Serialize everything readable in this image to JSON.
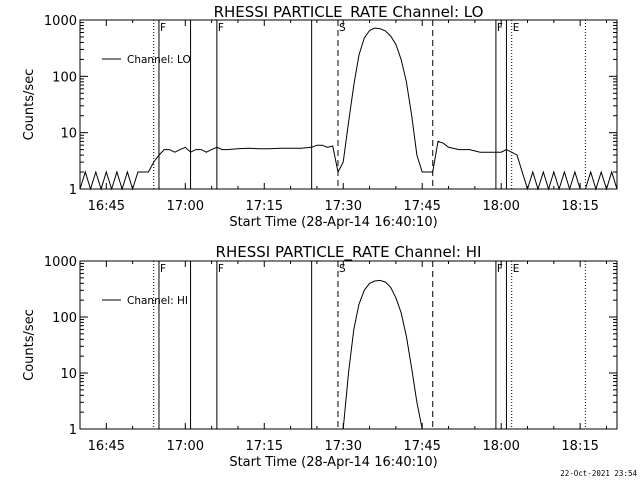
{
  "stamp": "22-Oct-2021 23:54",
  "chart_data": [
    {
      "type": "line",
      "title": "RHESSI PARTICLE_RATE Channel: LO",
      "xlabel": "Start Time (28-Apr-14 16:40:10)",
      "ylabel": "Counts/sec",
      "y_scale": "log",
      "ylim": [
        1,
        1000
      ],
      "xlim": [
        "16:40",
        "18:22"
      ],
      "xticks": [
        "16:45",
        "17:00",
        "17:15",
        "17:30",
        "17:45",
        "18:00",
        "18:15"
      ],
      "yticks": [
        "1",
        "10",
        "100",
        "1000"
      ],
      "legend": {
        "label": "Channel: LO",
        "position": "top-left"
      },
      "markers": [
        {
          "time": "16:54",
          "style": "dotted",
          "label": ""
        },
        {
          "time": "16:55",
          "style": "solid",
          "label": "F"
        },
        {
          "time": "17:01",
          "style": "solid",
          "label": ""
        },
        {
          "time": "17:06",
          "style": "solid",
          "label": "F"
        },
        {
          "time": "17:24",
          "style": "solid",
          "label": ""
        },
        {
          "time": "17:29",
          "style": "dashed",
          "label": "S"
        },
        {
          "time": "17:47",
          "style": "dashed",
          "label": ""
        },
        {
          "time": "17:59",
          "style": "solid",
          "label": "F"
        },
        {
          "time": "18:01",
          "style": "solid",
          "label": ""
        },
        {
          "time": "18:02",
          "style": "dotted",
          "label": "E"
        },
        {
          "time": "18:16",
          "style": "dotted",
          "label": ""
        }
      ],
      "series": [
        {
          "x": [
            "16:40",
            "16:41",
            "16:42",
            "16:43",
            "16:44",
            "16:45",
            "16:46",
            "16:47",
            "16:48",
            "16:49",
            "16:50",
            "16:51",
            "16:52",
            "16:53",
            "16:54",
            "16:55",
            "16:56",
            "16:57",
            "16:58",
            "16:59",
            "17:00",
            "17:01",
            "17:02",
            "17:03",
            "17:04",
            "17:05",
            "17:06",
            "17:07",
            "17:08",
            "17:10",
            "17:12",
            "17:14",
            "17:16",
            "17:18",
            "17:20",
            "17:22",
            "17:24",
            "17:25",
            "17:26",
            "17:27",
            "17:28",
            "17:29",
            "17:30",
            "17:31",
            "17:32",
            "17:33",
            "17:34",
            "17:35",
            "17:36",
            "17:37",
            "17:38",
            "17:39",
            "17:40",
            "17:41",
            "17:42",
            "17:43",
            "17:44",
            "17:45",
            "17:46",
            "17:47",
            "17:48",
            "17:49",
            "17:50",
            "17:52",
            "17:54",
            "17:56",
            "17:58",
            "18:00",
            "18:01",
            "18:02",
            "18:03",
            "18:04",
            "18:05",
            "18:06",
            "18:07",
            "18:08",
            "18:09",
            "18:10",
            "18:11",
            "18:12",
            "18:13",
            "18:14",
            "18:15",
            "18:16",
            "18:17",
            "18:18",
            "18:19",
            "18:20",
            "18:21",
            "18:22"
          ],
          "y": [
            1,
            2,
            1,
            2,
            1,
            2,
            1,
            2,
            1,
            2,
            1,
            2,
            2,
            2,
            3,
            4,
            5,
            5,
            4.5,
            5,
            5.5,
            4.5,
            5,
            5,
            4.5,
            5,
            5.5,
            5,
            5,
            5.2,
            5.3,
            5.2,
            5.2,
            5.3,
            5.3,
            5.3,
            5.5,
            6,
            6,
            5.5,
            5.8,
            2,
            3,
            15,
            70,
            240,
            480,
            650,
            720,
            700,
            640,
            520,
            370,
            200,
            80,
            20,
            4,
            2,
            2,
            2,
            7,
            6.5,
            5.5,
            5,
            5,
            4.5,
            4.5,
            4.5,
            5,
            4.5,
            4,
            2,
            1,
            2,
            1,
            2,
            1,
            2,
            1,
            2,
            1,
            2,
            1,
            1,
            2,
            1,
            2,
            1,
            2,
            1
          ]
        }
      ]
    },
    {
      "type": "line",
      "title": "RHESSI PARTICLE_RATE Channel: HI",
      "xlabel": "Start Time (28-Apr-14 16:40:10)",
      "ylabel": "Counts/sec",
      "y_scale": "log",
      "ylim": [
        1,
        1000
      ],
      "xlim": [
        "16:40",
        "18:22"
      ],
      "xticks": [
        "16:45",
        "17:00",
        "17:15",
        "17:30",
        "17:45",
        "18:00",
        "18:15"
      ],
      "yticks": [
        "1",
        "10",
        "100",
        "1000"
      ],
      "legend": {
        "label": "Channel: HI",
        "position": "top-left"
      },
      "markers": [
        {
          "time": "16:54",
          "style": "dotted",
          "label": ""
        },
        {
          "time": "16:55",
          "style": "solid",
          "label": "F"
        },
        {
          "time": "17:01",
          "style": "solid",
          "label": ""
        },
        {
          "time": "17:06",
          "style": "solid",
          "label": "F"
        },
        {
          "time": "17:24",
          "style": "solid",
          "label": ""
        },
        {
          "time": "17:29",
          "style": "dashed",
          "label": "S"
        },
        {
          "time": "17:47",
          "style": "dashed",
          "label": ""
        },
        {
          "time": "17:59",
          "style": "solid",
          "label": "F"
        },
        {
          "time": "18:01",
          "style": "solid",
          "label": ""
        },
        {
          "time": "18:02",
          "style": "dotted",
          "label": "E"
        },
        {
          "time": "18:16",
          "style": "dotted",
          "label": ""
        }
      ],
      "series": [
        {
          "x": [
            "17:30",
            "17:31",
            "17:32",
            "17:33",
            "17:34",
            "17:35",
            "17:36",
            "17:37",
            "17:38",
            "17:39",
            "17:40",
            "17:41",
            "17:42",
            "17:43",
            "17:44",
            "17:45"
          ],
          "y": [
            1,
            10,
            60,
            170,
            300,
            400,
            440,
            450,
            420,
            340,
            220,
            120,
            45,
            12,
            3,
            1
          ]
        }
      ]
    }
  ]
}
